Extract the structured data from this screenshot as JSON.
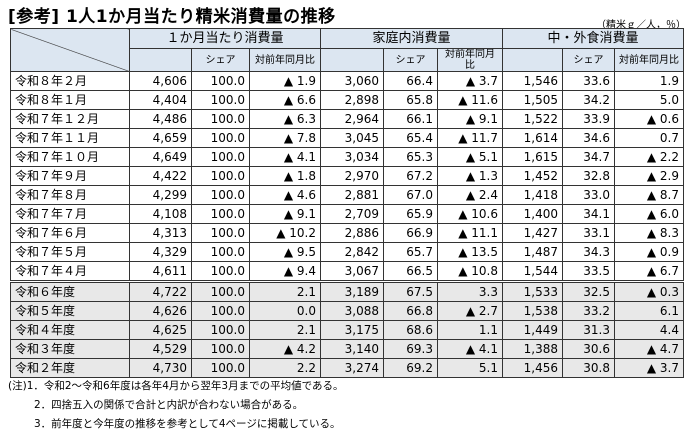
{
  "title": "[参考] 1人1か月当たり精米消費量の推移",
  "unit": "（精米ｇ／人，％）",
  "headers": {
    "groups": [
      "１か月当たり消費量",
      "家庭内消費量",
      "中・外食消費量"
    ],
    "share": "シェア",
    "yoy": "対前年同月比"
  },
  "rows": [
    {
      "label": "令和８年２月",
      "v": [
        "4,606",
        "100.0",
        "▲ 1.9",
        "3,060",
        "66.4",
        "▲ 3.7",
        "1,546",
        "33.6",
        "1.9"
      ]
    },
    {
      "label": "令和８年１月",
      "v": [
        "4,404",
        "100.0",
        "▲ 6.6",
        "2,898",
        "65.8",
        "▲ 11.6",
        "1,505",
        "34.2",
        "5.0"
      ]
    },
    {
      "label": "令和７年１２月",
      "v": [
        "4,486",
        "100.0",
        "▲ 6.3",
        "2,964",
        "66.1",
        "▲ 9.1",
        "1,522",
        "33.9",
        "▲ 0.6"
      ]
    },
    {
      "label": "令和７年１１月",
      "v": [
        "4,659",
        "100.0",
        "▲ 7.8",
        "3,045",
        "65.4",
        "▲ 11.7",
        "1,614",
        "34.6",
        "0.7"
      ]
    },
    {
      "label": "令和７年１０月",
      "v": [
        "4,649",
        "100.0",
        "▲ 4.1",
        "3,034",
        "65.3",
        "▲ 5.1",
        "1,615",
        "34.7",
        "▲ 2.2"
      ]
    },
    {
      "label": "令和７年９月",
      "v": [
        "4,422",
        "100.0",
        "▲ 1.8",
        "2,970",
        "67.2",
        "▲ 1.3",
        "1,452",
        "32.8",
        "▲ 2.9"
      ]
    },
    {
      "label": "令和７年８月",
      "v": [
        "4,299",
        "100.0",
        "▲ 4.6",
        "2,881",
        "67.0",
        "▲ 2.4",
        "1,418",
        "33.0",
        "▲ 8.7"
      ]
    },
    {
      "label": "令和７年７月",
      "v": [
        "4,108",
        "100.0",
        "▲ 9.1",
        "2,709",
        "65.9",
        "▲ 10.6",
        "1,400",
        "34.1",
        "▲ 6.0"
      ]
    },
    {
      "label": "令和７年６月",
      "v": [
        "4,313",
        "100.0",
        "▲ 10.2",
        "2,886",
        "66.9",
        "▲ 11.1",
        "1,427",
        "33.1",
        "▲ 8.3"
      ]
    },
    {
      "label": "令和７年５月",
      "v": [
        "4,329",
        "100.0",
        "▲ 9.5",
        "2,842",
        "65.7",
        "▲ 13.5",
        "1,487",
        "34.3",
        "▲ 0.9"
      ]
    },
    {
      "label": "令和７年４月",
      "v": [
        "4,611",
        "100.0",
        "▲ 9.4",
        "3,067",
        "66.5",
        "▲ 10.8",
        "1,544",
        "33.5",
        "▲ 6.7"
      ]
    },
    {
      "label": "令和６年度",
      "fy": true,
      "v": [
        "4,722",
        "100.0",
        "2.1",
        "3,189",
        "67.5",
        "3.3",
        "1,533",
        "32.5",
        "▲ 0.3"
      ]
    },
    {
      "label": "令和５年度",
      "fy": true,
      "v": [
        "4,626",
        "100.0",
        "0.0",
        "3,088",
        "66.8",
        "▲ 2.7",
        "1,538",
        "33.2",
        "6.1"
      ]
    },
    {
      "label": "令和４年度",
      "fy": true,
      "v": [
        "4,625",
        "100.0",
        "2.1",
        "3,175",
        "68.6",
        "1.1",
        "1,449",
        "31.3",
        "4.4"
      ]
    },
    {
      "label": "令和３年度",
      "fy": true,
      "v": [
        "4,529",
        "100.0",
        "▲ 4.2",
        "3,140",
        "69.3",
        "▲ 4.1",
        "1,388",
        "30.6",
        "▲ 4.7"
      ]
    },
    {
      "label": "令和２年度",
      "fy": true,
      "v": [
        "4,730",
        "100.0",
        "2.2",
        "3,274",
        "69.2",
        "5.1",
        "1,456",
        "30.8",
        "▲ 3.7"
      ]
    }
  ],
  "notes": [
    "(注)1．令和2～令和6年度は各年4月から翌年3月までの平均値である。",
    "2．四捨五入の関係で合計と内訳が合わない場合がある。",
    "3．前年度と今年度の推移を参考として4ページに掲載している。"
  ],
  "colors": {
    "header_bg": "#dce6f1",
    "fiscal_row_bg": "#e8e8e8"
  }
}
